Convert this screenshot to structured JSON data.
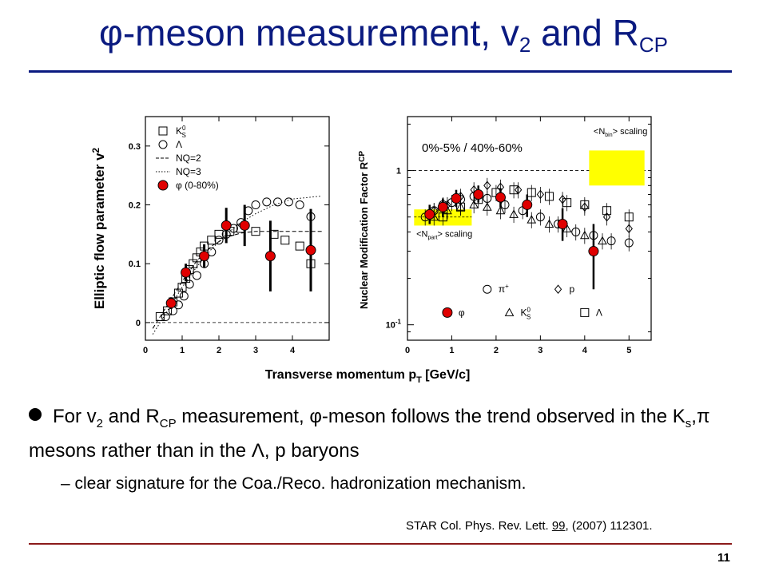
{
  "slide": {
    "title_main": "-meson measurement, v",
    "title_sub1": "2",
    "title_and": " and R",
    "title_sub2": "CP",
    "phi_symbol": "φ",
    "bullet": {
      "p1": "For v",
      "s1": "2",
      "p2": " and R",
      "s2": "CP",
      "p3": " measurement, ",
      "phi": "φ",
      "p4": "-meson follows the trend observed in the K",
      "s3": "s",
      "p5": ",π mesons rather than in the Λ, p baryons"
    },
    "sub_bullet": "– clear signature for the Coa./Reco. hadronization mechanism.",
    "reference": {
      "pre": "STAR Col. Phys. Rev. Lett. ",
      "volume": "99",
      "post": ", (2007) 112301."
    },
    "page_number": "11"
  },
  "colors": {
    "title": "#0a1a80",
    "accent": "#8b1a1a",
    "phi_marker": "#e00000",
    "scaling_box": "#ffff00"
  },
  "shared_xlabel": "Transverse momentum p",
  "shared_xlabel_sub": "T",
  "shared_xlabel_unit": " [GeV/c]",
  "chart_data": [
    {
      "type": "scatter",
      "ylabel": "Elliptic flow parameter v",
      "ylabel_sub": "2",
      "xlim": [
        0,
        5
      ],
      "ylim": [
        -0.03,
        0.35
      ],
      "xticks": [
        "0",
        "1",
        "2",
        "3",
        "4"
      ],
      "yticks": [
        "0",
        "0.1",
        "0.2",
        "0.3"
      ],
      "legend": [
        {
          "label": "K",
          "sup": "0",
          "sub": "S",
          "marker": "open-square"
        },
        {
          "label": "Λ",
          "marker": "open-circle"
        },
        {
          "label": "NQ=2",
          "marker": "dashed"
        },
        {
          "label": "NQ=3",
          "marker": "dotted"
        },
        {
          "label": "φ (0-80%)",
          "marker": "red-circle"
        }
      ],
      "series": [
        {
          "name": "K",
          "marker": "open-square",
          "x": [
            0.4,
            0.6,
            0.75,
            0.9,
            1.0,
            1.1,
            1.2,
            1.3,
            1.4,
            1.5,
            1.6,
            1.8,
            2.0,
            2.3,
            2.6,
            3.0,
            3.5,
            3.8,
            4.2,
            4.5
          ],
          "y": [
            0.01,
            0.02,
            0.035,
            0.05,
            0.06,
            0.075,
            0.09,
            0.1,
            0.11,
            0.12,
            0.13,
            0.14,
            0.15,
            0.155,
            0.16,
            0.155,
            0.15,
            0.14,
            0.13,
            0.1
          ]
        },
        {
          "name": "Λ",
          "marker": "open-circle",
          "x": [
            0.55,
            0.75,
            0.9,
            1.05,
            1.2,
            1.4,
            1.6,
            1.8,
            2.0,
            2.2,
            2.4,
            2.6,
            2.8,
            3.0,
            3.3,
            3.6,
            3.9,
            4.2,
            4.5
          ],
          "y": [
            0.01,
            0.02,
            0.03,
            0.045,
            0.065,
            0.08,
            0.1,
            0.12,
            0.14,
            0.15,
            0.16,
            0.17,
            0.19,
            0.2,
            0.205,
            0.205,
            0.205,
            0.2,
            0.18
          ]
        },
        {
          "name": "φ (0-80%)",
          "marker": "red-circle",
          "x": [
            0.7,
            1.1,
            1.6,
            2.2,
            2.7,
            3.4,
            4.5
          ],
          "y": [
            0.033,
            0.085,
            0.113,
            0.165,
            0.165,
            0.113,
            0.123
          ],
          "err": [
            0.01,
            0.015,
            0.02,
            0.03,
            0.035,
            0.06,
            0.07
          ]
        }
      ],
      "curves": [
        {
          "name": "NQ=2",
          "style": "dashed",
          "x": [
            0.2,
            0.6,
            1.0,
            1.4,
            1.8,
            2.2,
            2.6,
            3.0,
            3.5,
            4.0,
            4.8
          ],
          "y": [
            -0.01,
            0.03,
            0.07,
            0.105,
            0.13,
            0.145,
            0.152,
            0.155,
            0.155,
            0.155,
            0.155
          ]
        },
        {
          "name": "NQ=3",
          "style": "dotted",
          "x": [
            0.2,
            0.6,
            1.0,
            1.4,
            1.8,
            2.2,
            2.6,
            3.0,
            3.5,
            4.0,
            4.8
          ],
          "y": [
            -0.02,
            0.02,
            0.06,
            0.095,
            0.125,
            0.15,
            0.17,
            0.185,
            0.2,
            0.21,
            0.215
          ]
        }
      ]
    },
    {
      "type": "scatter",
      "ylabel": "Nuclear Modification Factor R",
      "ylabel_sub": "CP",
      "annotation": "0%-5% / 40%-60%",
      "nbin_label": "<N",
      "nbin_sub": "bin",
      "nbin_suffix": "> scaling",
      "npart_label": "<N",
      "npart_sub": "part",
      "npart_suffix": "> scaling",
      "xlim": [
        0,
        5.5
      ],
      "ylim_log10": [
        -1.1,
        0.35
      ],
      "xticks": [
        "0",
        "1",
        "2",
        "3",
        "4",
        "5"
      ],
      "yticks": [
        "10",
        "1"
      ],
      "ytick_sup": "-1",
      "legend": [
        {
          "label": "π",
          "sup": "+",
          "marker": "open-circle"
        },
        {
          "label": "p",
          "marker": "open-diamond"
        },
        {
          "label": "φ",
          "marker": "red-circle"
        },
        {
          "label": "K",
          "sup": "0",
          "sub": "S",
          "marker": "open-triangle"
        },
        {
          "label": "Λ",
          "marker": "open-square"
        }
      ],
      "series": [
        {
          "name": "φ",
          "marker": "red-circle",
          "x": [
            0.5,
            0.8,
            1.1,
            1.6,
            2.1,
            2.7,
            3.5,
            4.2
          ],
          "y": [
            0.52,
            0.58,
            0.66,
            0.7,
            0.67,
            0.6,
            0.45,
            0.3
          ],
          "err_lo": [
            0.45,
            0.5,
            0.58,
            0.62,
            0.58,
            0.5,
            0.35,
            0.17
          ],
          "err_hi": [
            0.6,
            0.66,
            0.75,
            0.8,
            0.77,
            0.7,
            0.57,
            0.45
          ]
        },
        {
          "name": "π+",
          "marker": "open-circle",
          "x": [
            0.4,
            0.6,
            0.8,
            1.0,
            1.2,
            1.5,
            1.8,
            2.2,
            2.6,
            3.0,
            3.4,
            3.8,
            4.2,
            4.6,
            5.0
          ],
          "y": [
            0.5,
            0.55,
            0.6,
            0.62,
            0.65,
            0.68,
            0.66,
            0.6,
            0.55,
            0.5,
            0.45,
            0.4,
            0.38,
            0.35,
            0.34
          ]
        },
        {
          "name": "p",
          "marker": "open-diamond",
          "x": [
            0.6,
            0.9,
            1.2,
            1.5,
            1.8,
            2.1,
            2.5,
            3.0,
            3.5,
            4.0,
            4.5,
            5.0
          ],
          "y": [
            0.55,
            0.6,
            0.68,
            0.75,
            0.8,
            0.78,
            0.75,
            0.7,
            0.65,
            0.58,
            0.5,
            0.42
          ]
        },
        {
          "name": "K0S",
          "marker": "open-triangle",
          "x": [
            0.6,
            0.9,
            1.2,
            1.5,
            1.8,
            2.1,
            2.4,
            2.8,
            3.2,
            3.6,
            4.0,
            4.4
          ],
          "y": [
            0.5,
            0.55,
            0.58,
            0.6,
            0.58,
            0.55,
            0.52,
            0.48,
            0.45,
            0.42,
            0.38,
            0.35
          ]
        },
        {
          "name": "Λ",
          "marker": "open-square",
          "x": [
            0.8,
            1.2,
            1.6,
            2.0,
            2.4,
            2.8,
            3.2,
            3.6,
            4.0,
            4.5,
            5.0
          ],
          "y": [
            0.5,
            0.58,
            0.65,
            0.72,
            0.75,
            0.72,
            0.68,
            0.62,
            0.6,
            0.55,
            0.5
          ]
        }
      ]
    }
  ]
}
